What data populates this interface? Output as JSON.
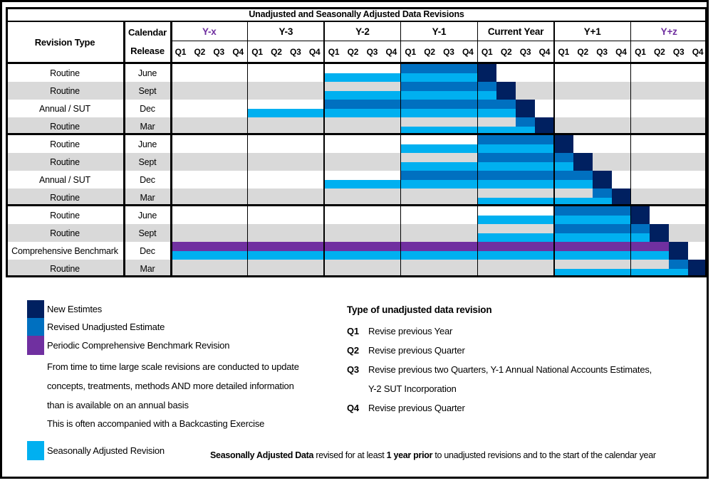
{
  "title": "Unadjusted and Seasonally Adjusted Data Revisions",
  "header": {
    "revision_type": "Revision Type",
    "calendar_line1": "Calendar",
    "calendar_line2": "Release",
    "quarter_labels": [
      "Q1",
      "Q2",
      "Q3",
      "Q4"
    ]
  },
  "colors": {
    "navy": "#002060",
    "blue": "#0070C0",
    "cyan": "#00B0F0",
    "purple": "#7030A0",
    "row_alt": "#D9D9D9",
    "accent_year": "#7030A0"
  },
  "chart_data": {
    "type": "gantt",
    "title": "Unadjusted and Seasonally Adjusted Data Revisions",
    "x_axis": {
      "years": [
        {
          "label": "Y-x",
          "accent": true
        },
        {
          "label": "Y-3"
        },
        {
          "label": "Y-2"
        },
        {
          "label": "Y-1"
        },
        {
          "label": "Current Year"
        },
        {
          "label": "Y+1"
        },
        {
          "label": "Y+z",
          "accent": true
        }
      ],
      "quarters_per_year": 4,
      "quarter_labels": [
        "Q1",
        "Q2",
        "Q3",
        "Q4"
      ]
    },
    "rows": [
      {
        "revision_type": "Routine",
        "release": "June",
        "seasonal": [
          8,
          16
        ],
        "unadjusted": [
          12,
          16
        ],
        "top_color": "blue",
        "new_estimate": 16
      },
      {
        "revision_type": "Routine",
        "release": "Sept",
        "seasonal": [
          8,
          17
        ],
        "unadjusted": [
          12,
          17
        ],
        "top_color": "blue",
        "new_estimate": 17
      },
      {
        "revision_type": "Annual / SUT",
        "release": "Dec",
        "seasonal": [
          4,
          18
        ],
        "unadjusted": [
          8,
          18
        ],
        "top_color": "blue",
        "new_estimate": 18
      },
      {
        "revision_type": "Routine",
        "release": "Mar",
        "seasonal": [
          12,
          19
        ],
        "unadjusted": [
          18,
          19
        ],
        "top_color": "blue",
        "new_estimate": 19
      },
      {
        "revision_type": "Routine",
        "release": "June",
        "seasonal": [
          12,
          20
        ],
        "unadjusted": [
          16,
          20
        ],
        "top_color": "blue",
        "new_estimate": 20
      },
      {
        "revision_type": "Routine",
        "release": "Sept",
        "seasonal": [
          12,
          21
        ],
        "unadjusted": [
          16,
          21
        ],
        "top_color": "blue",
        "new_estimate": 21
      },
      {
        "revision_type": "Annual / SUT",
        "release": "Dec",
        "seasonal": [
          8,
          22
        ],
        "unadjusted": [
          12,
          22
        ],
        "top_color": "blue",
        "new_estimate": 22
      },
      {
        "revision_type": "Routine",
        "release": "Mar",
        "seasonal": [
          16,
          23
        ],
        "unadjusted": [
          22,
          23
        ],
        "top_color": "blue",
        "new_estimate": 23
      },
      {
        "revision_type": "Routine",
        "release": "June",
        "seasonal": [
          16,
          24
        ],
        "unadjusted": [
          20,
          24
        ],
        "top_color": "blue",
        "new_estimate": 24
      },
      {
        "revision_type": "Routine",
        "release": "Sept",
        "seasonal": [
          16,
          25
        ],
        "unadjusted": [
          20,
          25
        ],
        "top_color": "blue",
        "new_estimate": 25
      },
      {
        "revision_type": "Comprehensive Benchmark",
        "release": "Dec",
        "seasonal": [
          0,
          26
        ],
        "unadjusted": [
          0,
          26
        ],
        "top_color": "purple",
        "new_estimate": 26
      },
      {
        "revision_type": "Routine",
        "release": "Mar",
        "seasonal": [
          20,
          27
        ],
        "unadjusted": [
          26,
          27
        ],
        "top_color": "blue",
        "new_estimate": 27
      }
    ]
  },
  "legend": {
    "items": [
      {
        "label": "New Estimtes",
        "color": "#002060"
      },
      {
        "label": "Revised Unadjusted Estimate",
        "color": "#0070C0"
      },
      {
        "label": "Periodic Comprehensive Benchmark Revision",
        "color": "#7030A0"
      }
    ],
    "note_lines": [
      "From time to time large scale revisions are conducted to update",
      "concepts, treatments, methods AND more detailed information",
      "than is available on an annual basis"
    ],
    "backcasting_note": "This is often accompanied with a Backcasting Exercise",
    "sa_item": {
      "label": "Seasonally Adjusted Revision",
      "color": "#00B0F0"
    }
  },
  "unadjusted_types": {
    "heading": "Type of unadjusted data revision",
    "items": [
      {
        "label": "Q1",
        "desc": "Revise previous Year"
      },
      {
        "label": "Q2",
        "desc": "Revise previous Quarter"
      },
      {
        "label": "Q3",
        "desc": "Revise previous two Quarters, Y-1 Annual National Accounts Estimates,",
        "desc2": "Y-2 SUT Incorporation"
      },
      {
        "label": "Q4",
        "desc": "Revise previous Quarter"
      }
    ]
  },
  "sa_note": {
    "bold1": "Seasonally Adjusted Data",
    "normal1": " revised for at least ",
    "bold2": "1 year prior",
    "normal2": " to unadjusted revisions and to the start of the calendar year"
  }
}
